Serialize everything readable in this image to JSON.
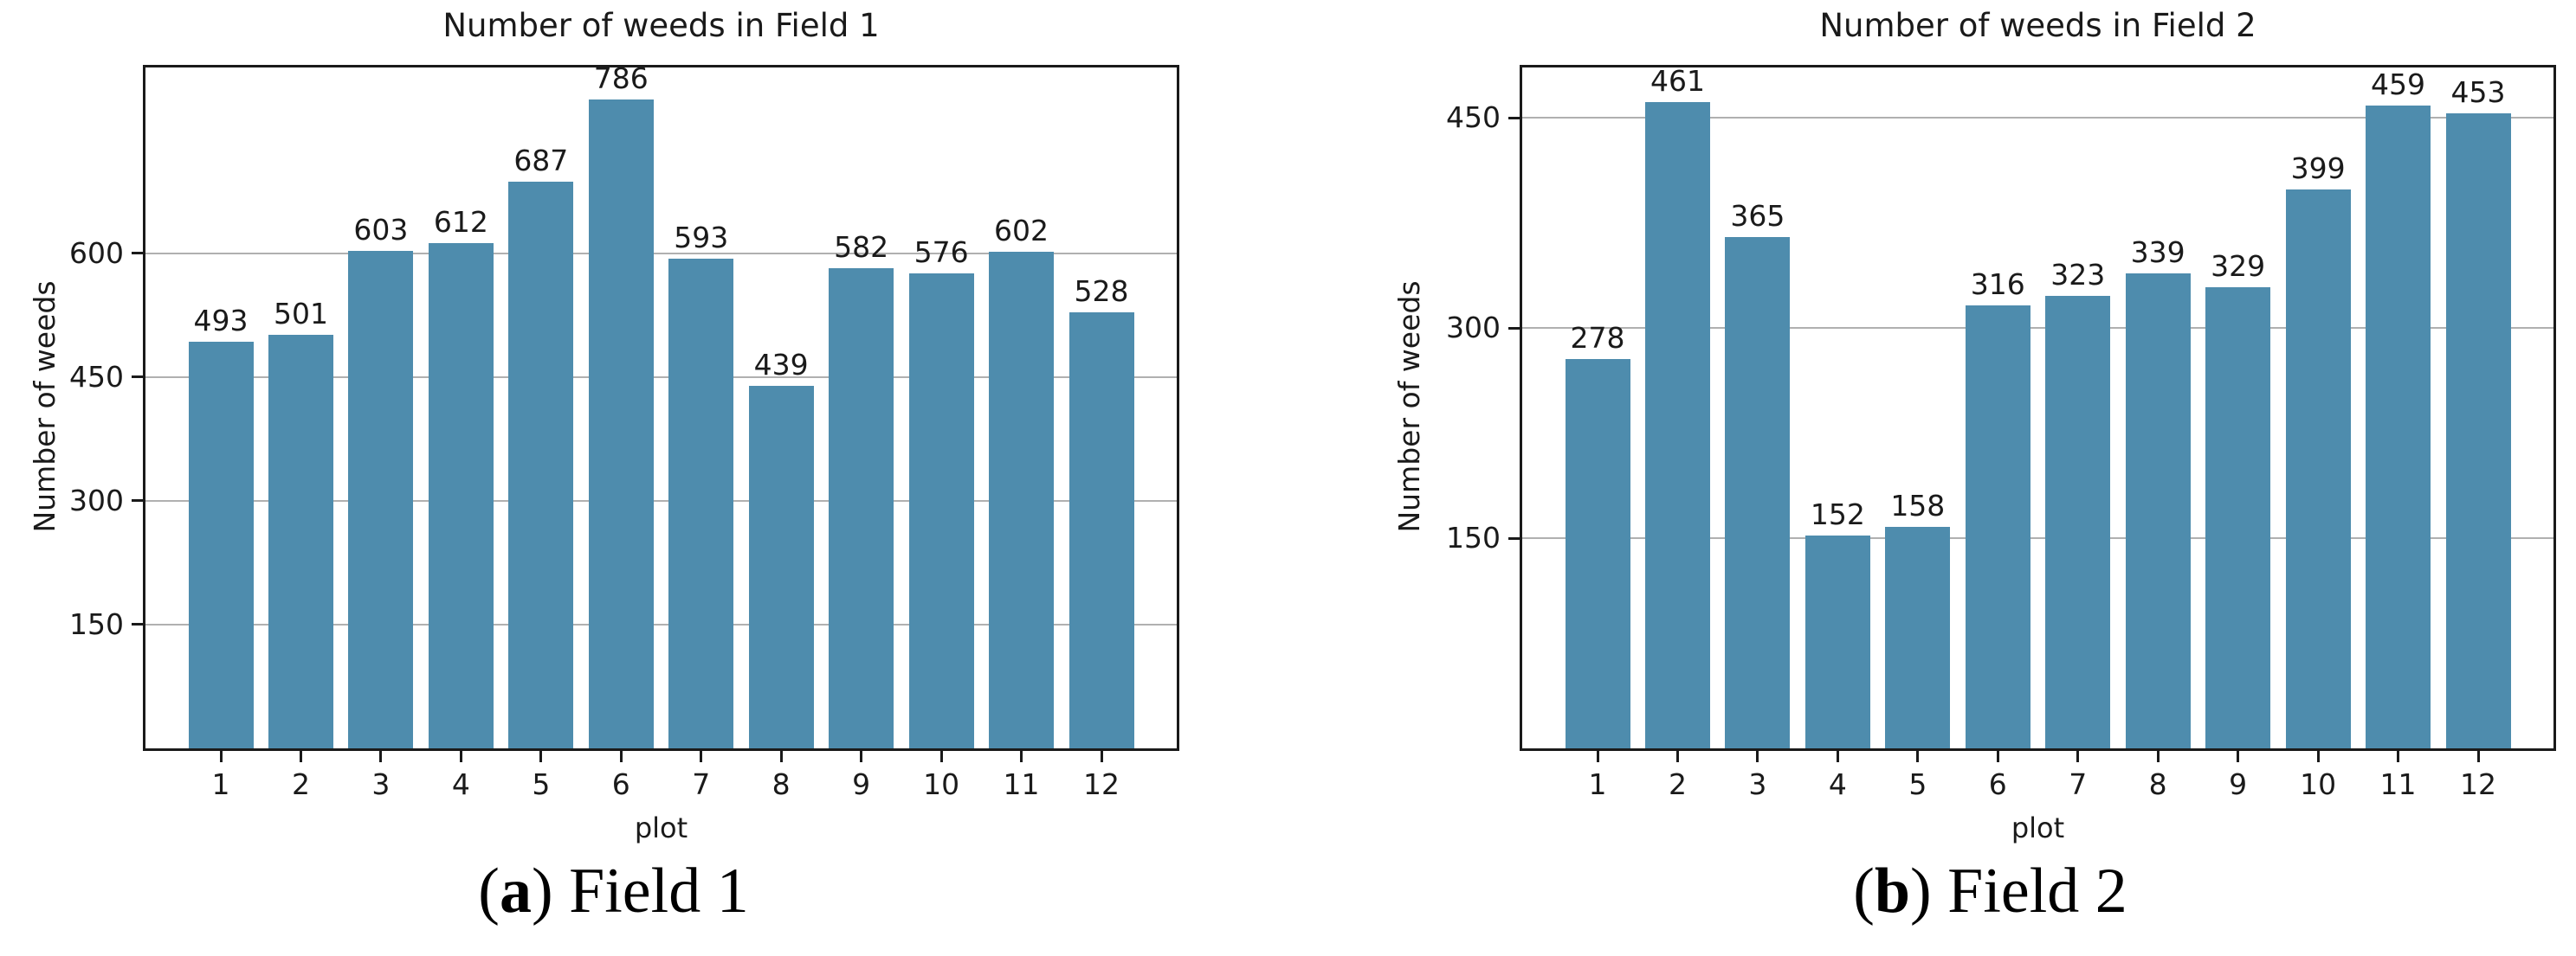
{
  "figure": {
    "background": "#ffffff"
  },
  "colors": {
    "bar": "#4E8CAD",
    "grid": "#b0b0b0",
    "axis": "#1a1a1a",
    "text": "#1a1a1a",
    "caption_text": "#000000"
  },
  "chart_data": [
    {
      "type": "bar",
      "title": "Number of weeds in Field 1",
      "xlabel": "plot",
      "ylabel": "Number of weeds",
      "categories": [
        "1",
        "2",
        "3",
        "4",
        "5",
        "6",
        "7",
        "8",
        "9",
        "10",
        "11",
        "12"
      ],
      "values": [
        493,
        501,
        603,
        612,
        687,
        786,
        593,
        439,
        582,
        576,
        602,
        528
      ],
      "yticks": [
        150,
        300,
        450,
        600
      ],
      "ylim": [
        0,
        825
      ],
      "grid": "horizontal-on",
      "legend": "none",
      "bar_labels_shown": true,
      "caption": {
        "paren_open": "(",
        "letter": "a",
        "rest": ") Field 1"
      }
    },
    {
      "type": "bar",
      "title": "Number of weeds in Field 2",
      "xlabel": "plot",
      "ylabel": "Number of weeds",
      "categories": [
        "1",
        "2",
        "3",
        "4",
        "5",
        "6",
        "7",
        "8",
        "9",
        "10",
        "11",
        "12"
      ],
      "values": [
        278,
        461,
        365,
        152,
        158,
        316,
        323,
        339,
        329,
        399,
        459,
        453
      ],
      "yticks": [
        150,
        300,
        450
      ],
      "ylim": [
        0,
        486
      ],
      "grid": "horizontal-on",
      "legend": "none",
      "bar_labels_shown": true,
      "caption": {
        "paren_open": "(",
        "letter": "b",
        "rest": ") Field 2"
      }
    }
  ]
}
